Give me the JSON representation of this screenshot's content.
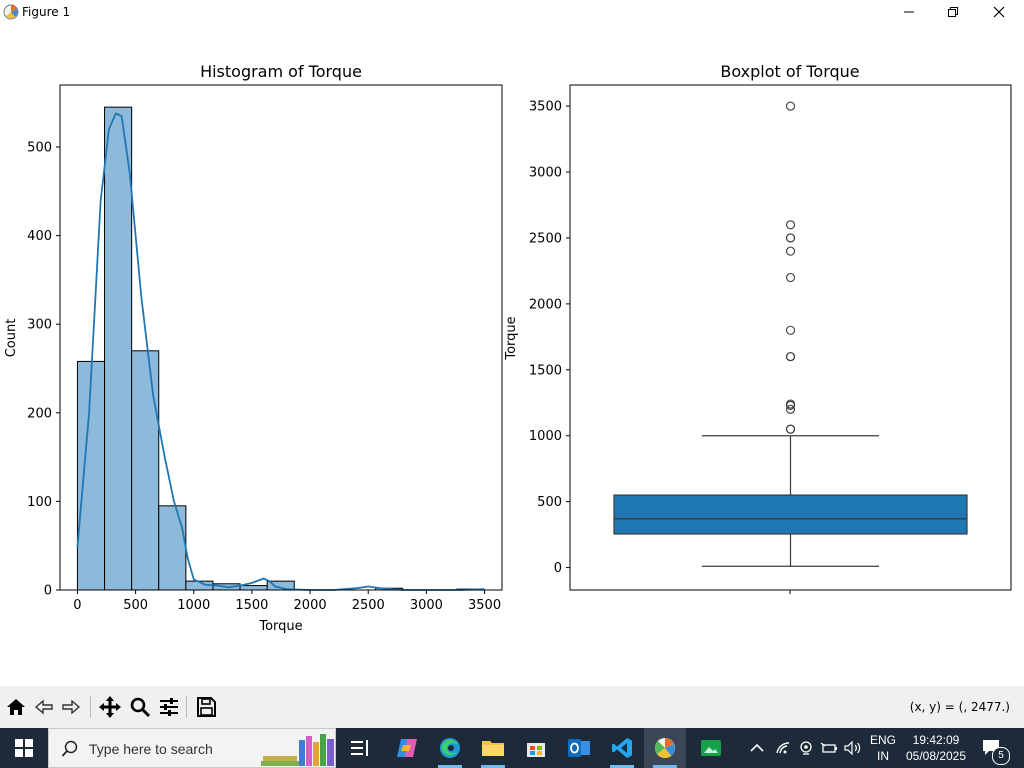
{
  "window": {
    "title": "Figure 1"
  },
  "histogram": {
    "title": "Histogram of Torque",
    "xlabel": "Torque",
    "ylabel": "Count",
    "xticks": [
      "0",
      "500",
      "1000",
      "1500",
      "2000",
      "2500",
      "3000",
      "3500"
    ],
    "yticks": [
      "0",
      "100",
      "200",
      "300",
      "400",
      "500"
    ]
  },
  "boxplot": {
    "title": "Boxplot of Torque",
    "ylabel": "Torque",
    "yticks": [
      "0",
      "500",
      "1000",
      "1500",
      "2000",
      "2500",
      "3000",
      "3500"
    ]
  },
  "chart_data": [
    {
      "type": "bar",
      "title": "Histogram of Torque",
      "xlabel": "Torque",
      "ylabel": "Count",
      "xlim": [
        -150,
        3650
      ],
      "ylim": [
        0,
        570
      ],
      "bin_width": 233,
      "bins": [
        {
          "start": 0,
          "count": 258
        },
        {
          "start": 233,
          "count": 545
        },
        {
          "start": 466,
          "count": 270
        },
        {
          "start": 699,
          "count": 95
        },
        {
          "start": 932,
          "count": 10
        },
        {
          "start": 1165,
          "count": 7
        },
        {
          "start": 1398,
          "count": 5
        },
        {
          "start": 1631,
          "count": 10
        },
        {
          "start": 1864,
          "count": 0
        },
        {
          "start": 2097,
          "count": 0
        },
        {
          "start": 2330,
          "count": 0
        },
        {
          "start": 2563,
          "count": 2
        },
        {
          "start": 2796,
          "count": 0
        },
        {
          "start": 3029,
          "count": 0
        },
        {
          "start": 3262,
          "count": 1
        }
      ],
      "kde": {
        "x": [
          0,
          100,
          200,
          270,
          330,
          380,
          450,
          550,
          650,
          750,
          830,
          900,
          950,
          1000,
          1100,
          1200,
          1300,
          1400,
          1500,
          1600,
          1650,
          1700,
          1800,
          2000,
          2200,
          2400,
          2500,
          2600,
          2800,
          3000,
          3300,
          3500
        ],
        "y": [
          48,
          200,
          440,
          520,
          538,
          535,
          470,
          330,
          220,
          150,
          100,
          70,
          35,
          12,
          6,
          5,
          3,
          5,
          8,
          13,
          10,
          4,
          1,
          0,
          0,
          2,
          4,
          2,
          0,
          0,
          0,
          1
        ]
      },
      "bar_color": "#8db9db",
      "line_color": "#1f77b4"
    },
    {
      "type": "box",
      "title": "Boxplot of Torque",
      "ylabel": "Torque",
      "ylim": [
        -170,
        3660
      ],
      "whisker_low": 10,
      "q1": 255,
      "median": 370,
      "q3": 550,
      "whisker_high": 1000,
      "outliers": [
        1050,
        1050,
        1200,
        1230,
        1240,
        1600,
        1600,
        1800,
        2200,
        2400,
        2500,
        2500,
        2600,
        3500
      ],
      "box_color": "#1f77b4"
    }
  ],
  "toolbar": {
    "coords": "(x, y) = (, 2477.)"
  },
  "taskbar": {
    "search_placeholder": "Type here to search",
    "lang_top": "ENG",
    "lang_bottom": "IN",
    "time": "19:42:09",
    "date": "05/08/2025",
    "notification_count": "5"
  }
}
